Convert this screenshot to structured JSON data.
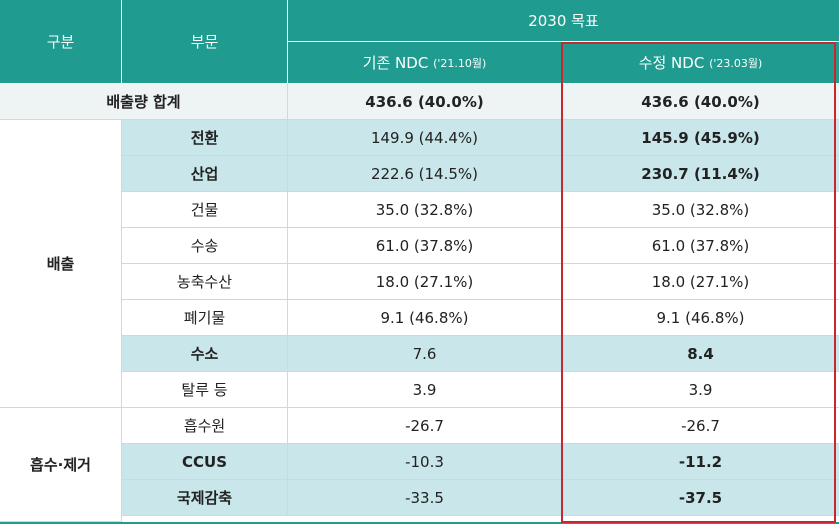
{
  "header": {
    "col1": "구분",
    "col2": "부문",
    "target_group": "2030 목표",
    "existing_label": "기존 NDC",
    "existing_date": "('21.10월)",
    "revised_label": "수정 NDC",
    "revised_date": "('23.03월)"
  },
  "total": {
    "label": "배출량 합계",
    "existing": "436.6 (40.0%)",
    "revised": "436.6 (40.0%)"
  },
  "groups": {
    "emission": "배출",
    "absorption": "흡수·제거"
  },
  "rows": [
    {
      "sector": "전환",
      "existing": "149.9 (44.4%)",
      "revised": "145.9 (45.9%)",
      "highlight": true
    },
    {
      "sector": "산업",
      "existing": "222.6 (14.5%)",
      "revised": "230.7 (11.4%)",
      "highlight": true
    },
    {
      "sector": "건물",
      "existing": "35.0 (32.8%)",
      "revised": "35.0 (32.8%)",
      "highlight": false
    },
    {
      "sector": "수송",
      "existing": "61.0 (37.8%)",
      "revised": "61.0 (37.8%)",
      "highlight": false
    },
    {
      "sector": "농축수산",
      "existing": "18.0 (27.1%)",
      "revised": "18.0 (27.1%)",
      "highlight": false
    },
    {
      "sector": "폐기물",
      "existing": "9.1 (46.8%)",
      "revised": "9.1 (46.8%)",
      "highlight": false
    },
    {
      "sector": "수소",
      "existing": "7.6",
      "revised": "8.4",
      "highlight": true
    },
    {
      "sector": "탈루 등",
      "existing": "3.9",
      "revised": "3.9",
      "highlight": false
    },
    {
      "sector": "흡수원",
      "existing": "-26.7",
      "revised": "-26.7",
      "highlight": false
    },
    {
      "sector": "CCUS",
      "existing": "-10.3",
      "revised": "-11.2",
      "highlight": true
    },
    {
      "sector": "국제감축",
      "existing": "-33.5",
      "revised": "-37.5",
      "highlight": true
    }
  ],
  "colors": {
    "header": "#1f9b90",
    "highlight_row": "#c9e6ea",
    "total_row": "#eef3f4",
    "revision_box": "#c8282d"
  }
}
